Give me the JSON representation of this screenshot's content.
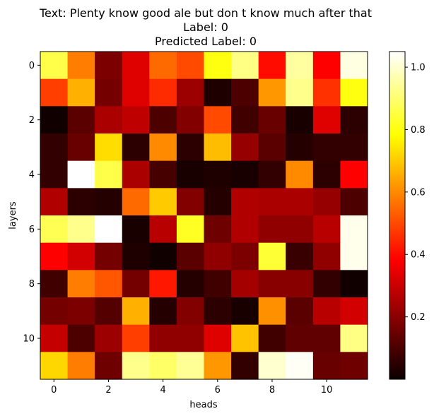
{
  "chart_data": {
    "type": "heatmap",
    "title_lines": [
      "Text: Plenty know good ale but don t know much after that",
      "Label: 0",
      "Predicted Label: 0"
    ],
    "xlabel": "heads",
    "ylabel": "layers",
    "x_ticks": [
      0,
      2,
      4,
      6,
      8,
      10
    ],
    "y_ticks": [
      0,
      2,
      4,
      6,
      8,
      10
    ],
    "colormap": "hot",
    "vmin": 0.0,
    "vmax": 1.05,
    "colorbar_ticks": [
      0.2,
      0.4,
      0.6,
      0.8,
      1.0
    ],
    "grid": false,
    "values": [
      [
        0.86,
        0.58,
        0.17,
        0.32,
        0.55,
        0.5,
        0.8,
        0.92,
        0.4,
        0.95,
        0.38,
        1.02
      ],
      [
        0.48,
        0.66,
        0.16,
        0.32,
        0.45,
        0.22,
        0.03,
        0.1,
        0.62,
        0.93,
        0.46,
        0.8
      ],
      [
        0.01,
        0.12,
        0.24,
        0.27,
        0.1,
        0.18,
        0.5,
        0.08,
        0.14,
        0.02,
        0.32,
        0.05
      ],
      [
        0.06,
        0.14,
        0.73,
        0.05,
        0.6,
        0.05,
        0.68,
        0.21,
        0.12,
        0.04,
        0.06,
        0.06
      ],
      [
        0.06,
        1.05,
        0.86,
        0.24,
        0.09,
        0.02,
        0.03,
        0.02,
        0.06,
        0.6,
        0.05,
        0.37
      ],
      [
        0.25,
        0.05,
        0.04,
        0.55,
        0.7,
        0.18,
        0.04,
        0.25,
        0.24,
        0.24,
        0.21,
        0.1
      ],
      [
        0.87,
        0.93,
        1.05,
        0.02,
        0.26,
        0.82,
        0.15,
        0.25,
        0.2,
        0.2,
        0.26,
        1.03
      ],
      [
        0.38,
        0.3,
        0.16,
        0.03,
        0.01,
        0.12,
        0.2,
        0.17,
        0.84,
        0.07,
        0.2,
        1.03
      ],
      [
        0.08,
        0.58,
        0.52,
        0.16,
        0.42,
        0.04,
        0.08,
        0.23,
        0.19,
        0.19,
        0.06,
        0.01
      ],
      [
        0.16,
        0.17,
        0.11,
        0.66,
        0.04,
        0.18,
        0.05,
        0.02,
        0.61,
        0.12,
        0.26,
        0.3
      ],
      [
        0.28,
        0.1,
        0.22,
        0.48,
        0.2,
        0.2,
        0.32,
        0.69,
        0.08,
        0.13,
        0.13,
        0.92
      ],
      [
        0.72,
        0.58,
        0.15,
        0.93,
        0.89,
        0.94,
        0.62,
        0.06,
        1.0,
        1.04,
        0.14,
        0.15
      ]
    ]
  }
}
